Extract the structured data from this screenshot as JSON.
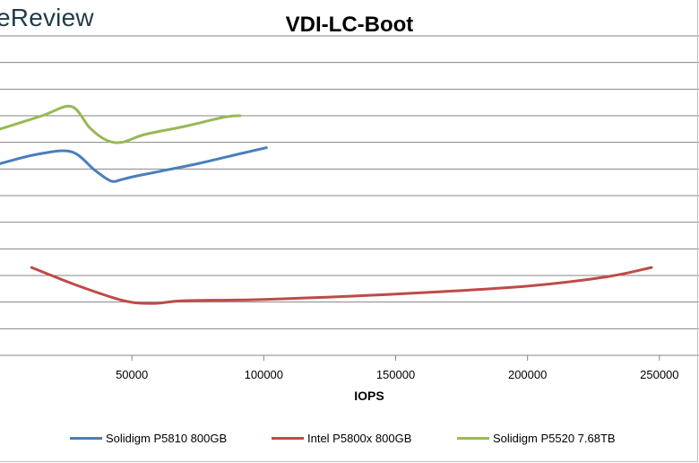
{
  "watermark": "eReview",
  "chart_data": {
    "type": "line",
    "title": "VDI-LC-Boot",
    "xlabel": "IOPS",
    "ylabel": "",
    "xlim": [
      0,
      265000
    ],
    "ylim": [
      0,
      12
    ],
    "x_ticks": [
      50000,
      100000,
      150000,
      200000,
      250000
    ],
    "x_tick_labels": [
      "50000",
      "100000",
      "150000",
      "200000",
      "250000"
    ],
    "grid": "horizontal",
    "legend_position": "bottom",
    "series": [
      {
        "name": "Solidigm P5810 800GB",
        "color": "#4a7ebb",
        "x": [
          0,
          14000,
          27000,
          36000,
          42000,
          46000,
          50000,
          60000,
          75000,
          90000,
          101000
        ],
        "y": [
          7.2,
          7.55,
          7.65,
          6.95,
          6.55,
          6.6,
          6.7,
          6.9,
          7.2,
          7.55,
          7.8
        ]
      },
      {
        "name": "Intel P5800x 800GB",
        "color": "#be4b48",
        "x": [
          12000,
          30000,
          47000,
          58000,
          70000,
          100000,
          150000,
          200000,
          230000,
          247000
        ],
        "y": [
          3.3,
          2.6,
          2.05,
          1.95,
          2.05,
          2.1,
          2.3,
          2.6,
          2.95,
          3.3
        ]
      },
      {
        "name": "Solidigm P5520 7.68TB",
        "color": "#98b954",
        "x": [
          0,
          16000,
          27000,
          34000,
          40000,
          46000,
          55000,
          70000,
          85000,
          91000
        ],
        "y": [
          8.5,
          9.0,
          9.35,
          8.55,
          8.1,
          8.0,
          8.3,
          8.6,
          8.95,
          9.0
        ]
      }
    ]
  }
}
